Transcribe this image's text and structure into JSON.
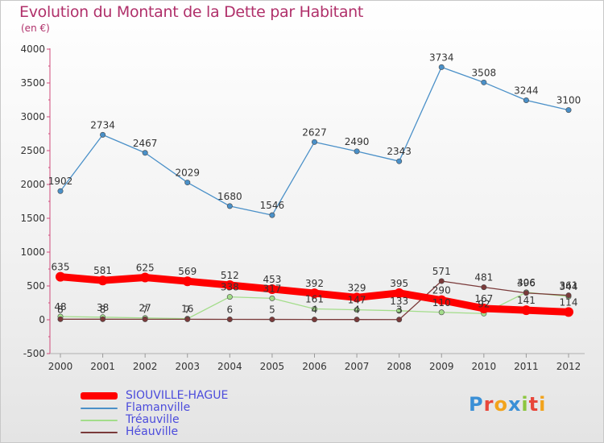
{
  "header": {
    "title": "Evolution du Montant de la Dette par Habitant",
    "subtitle": "(en €)"
  },
  "logo": {
    "text": "Proxiti",
    "letters": [
      "P",
      "r",
      "o",
      "x",
      "i",
      "t",
      "i"
    ],
    "colors": [
      "#3a8fd6",
      "#e8463a",
      "#f2a31c",
      "#3a8fd6",
      "#8cc63f",
      "#e8463a",
      "#f2a31c"
    ]
  },
  "chart_data": {
    "type": "line",
    "title": "Evolution du Montant de la Dette par Habitant",
    "subtitle": "(en €)",
    "xlabel": "",
    "ylabel": "",
    "x": [
      "2000",
      "2001",
      "2002",
      "2003",
      "2004",
      "2005",
      "2006",
      "2007",
      "2008",
      "2009",
      "2010",
      "2011",
      "2012"
    ],
    "ylim": [
      -500,
      4000
    ],
    "yticks": [
      -500,
      0,
      500,
      1000,
      1500,
      2000,
      2500,
      3000,
      3500,
      4000
    ],
    "grid": false,
    "legend_position": "bottom-left",
    "series": [
      {
        "name": "SIOUVILLE-HAGUE",
        "color": "#ff0000",
        "values": [
          635,
          581,
          625,
          569,
          512,
          453,
          392,
          329,
          395,
          290,
          167,
          141,
          114
        ],
        "labels": [
          "635",
          "581",
          "625",
          "569",
          "512",
          "453",
          "392",
          "329",
          "395",
          "290",
          "167",
          "141",
          "114"
        ]
      },
      {
        "name": "Flamanville",
        "color": "#4a90c8",
        "values": [
          1902,
          2734,
          2467,
          2029,
          1680,
          1546,
          2627,
          2490,
          2343,
          3734,
          3508,
          3244,
          3100
        ],
        "labels": [
          "1902",
          "2734",
          "2467",
          "2029",
          "1680",
          "1546",
          "2627",
          "2490",
          "2343",
          "3734",
          "3508",
          "3244",
          "3100"
        ]
      },
      {
        "name": "Tréauville",
        "color": "#a3dd8a",
        "values": [
          48,
          38,
          27,
          16,
          338,
          317,
          161,
          147,
          133,
          110,
          92,
          406,
          344
        ],
        "labels": [
          "48",
          "38",
          "27",
          "16",
          "338",
          "317",
          "161",
          "147",
          "133",
          "110",
          "92",
          "406",
          "344"
        ]
      },
      {
        "name": "Héauville",
        "color": "#7a3a3a",
        "values": [
          8,
          8,
          7,
          7,
          6,
          5,
          4,
          4,
          3,
          571,
          481,
          396,
          361
        ],
        "labels": [
          "8",
          "8",
          "7",
          "7",
          "6",
          "5",
          "4",
          "4",
          "3",
          "571",
          "481",
          "396",
          "361"
        ]
      }
    ]
  }
}
